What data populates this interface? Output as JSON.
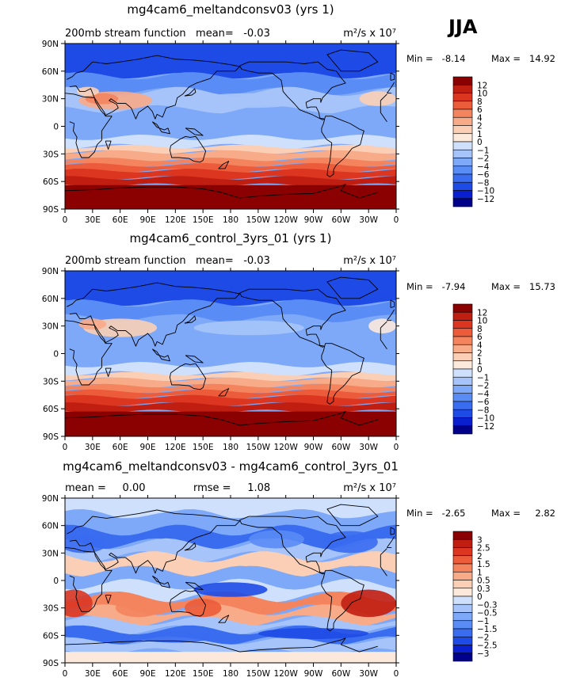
{
  "season": "JJA",
  "units_label": "m²/s x 10⁷",
  "x_tick_labels": [
    "0",
    "30E",
    "60E",
    "90E",
    "120E",
    "150E",
    "180",
    "150W",
    "120W",
    "90W",
    "60W",
    "30W",
    "0"
  ],
  "y_tick_labels": [
    "90N",
    "60N",
    "30N",
    "0",
    "30S",
    "60S",
    "90S"
  ],
  "palette": {
    "main": [
      "#00008b",
      "#0a1fd0",
      "#1e4be6",
      "#3a6cf0",
      "#5a8cf5",
      "#7ea8f8",
      "#a6c4fa",
      "#cfe0fc",
      "#fde9dc",
      "#fbcfb5",
      "#f8ab88",
      "#f3845e",
      "#ec5c3a",
      "#dc3621",
      "#c11e12",
      "#8b0000"
    ],
    "diff": [
      "#00008b",
      "#0a1fd0",
      "#1e4be6",
      "#3a6cf0",
      "#5a8cf5",
      "#7ea8f8",
      "#a6c4fa",
      "#cfe0fc",
      "#fde9dc",
      "#fbcfb5",
      "#f8ab88",
      "#f3845e",
      "#ec5c3a",
      "#dc3621",
      "#c11e12",
      "#8b0000"
    ]
  },
  "panels": [
    {
      "title": "mg4cam6_meltandconsv03 (yrs 1)",
      "left_label": "200mb stream function   mean=   -0.03",
      "rmse_label": "",
      "min_label": "Min =   -8.14",
      "max_label": "Max =   14.92",
      "colorbar_labels": [
        "12",
        "10",
        "8",
        "6",
        "4",
        "2",
        "1",
        "0",
        "−1",
        "−2",
        "−4",
        "−6",
        "−8",
        "−10",
        "−12"
      ]
    },
    {
      "title": "mg4cam6_control_3yrs_01 (yrs 1)",
      "left_label": "200mb stream function   mean=   -0.03",
      "rmse_label": "",
      "min_label": "Min =   -7.94",
      "max_label": "Max =   15.73",
      "colorbar_labels": [
        "12",
        "10",
        "8",
        "6",
        "4",
        "2",
        "1",
        "0",
        "−1",
        "−2",
        "−4",
        "−6",
        "−8",
        "−10",
        "−12"
      ]
    },
    {
      "title": "mg4cam6_meltandconsv03 - mg4cam6_control_3yrs_01",
      "left_label": "mean =     0.00",
      "rmse_label": "rmse =     1.08",
      "min_label": "Min =   -2.65",
      "max_label": "Max =     2.82",
      "colorbar_labels": [
        "3",
        "2.5",
        "2",
        "1.5",
        "1",
        "0.5",
        "0.3",
        "0",
        "−0.3",
        "−0.5",
        "−1",
        "−1.5",
        "−2",
        "−2.5",
        "−3"
      ]
    }
  ],
  "chart_data": [
    {
      "type": "heatmap",
      "title": "mg4cam6_meltandconsv03 (yrs 1)",
      "variable": "200mb stream function",
      "season": "JJA",
      "units": "m^2/s x 10^7",
      "mean": -0.03,
      "min": -8.14,
      "max": 14.92,
      "x": {
        "range": [
          0,
          360
        ],
        "ticks": [
          "0",
          "30E",
          "60E",
          "90E",
          "120E",
          "150E",
          "180",
          "150W",
          "120W",
          "90W",
          "60W",
          "30W",
          "0"
        ]
      },
      "y": {
        "range": [
          -90,
          90
        ],
        "ticks": [
          "90N",
          "60N",
          "30N",
          "0",
          "30S",
          "60S",
          "90S"
        ]
      },
      "contour_levels": [
        -12,
        -10,
        -8,
        -6,
        -4,
        -2,
        -1,
        0,
        1,
        2,
        4,
        6,
        8,
        10,
        12
      ]
    },
    {
      "type": "heatmap",
      "title": "mg4cam6_control_3yrs_01 (yrs 1)",
      "variable": "200mb stream function",
      "season": "JJA",
      "units": "m^2/s x 10^7",
      "mean": -0.03,
      "min": -7.94,
      "max": 15.73,
      "x": {
        "range": [
          0,
          360
        ],
        "ticks": [
          "0",
          "30E",
          "60E",
          "90E",
          "120E",
          "150E",
          "180",
          "150W",
          "120W",
          "90W",
          "60W",
          "30W",
          "0"
        ]
      },
      "y": {
        "range": [
          -90,
          90
        ],
        "ticks": [
          "90N",
          "60N",
          "30N",
          "0",
          "30S",
          "60S",
          "90S"
        ]
      },
      "contour_levels": [
        -12,
        -10,
        -8,
        -6,
        -4,
        -2,
        -1,
        0,
        1,
        2,
        4,
        6,
        8,
        10,
        12
      ]
    },
    {
      "type": "heatmap",
      "title": "mg4cam6_meltandconsv03 - mg4cam6_control_3yrs_01",
      "variable": "200mb stream function difference",
      "season": "JJA",
      "units": "m^2/s x 10^7",
      "mean": 0.0,
      "rmse": 1.08,
      "min": -2.65,
      "max": 2.82,
      "x": {
        "range": [
          0,
          360
        ],
        "ticks": [
          "0",
          "30E",
          "60E",
          "90E",
          "120E",
          "150E",
          "180",
          "150W",
          "120W",
          "90W",
          "60W",
          "30W",
          "0"
        ]
      },
      "y": {
        "range": [
          -90,
          90
        ],
        "ticks": [
          "90N",
          "60N",
          "30N",
          "0",
          "30S",
          "60S",
          "90S"
        ]
      },
      "contour_levels": [
        -3,
        -2.5,
        -2,
        -1.5,
        -1,
        -0.5,
        -0.3,
        0,
        0.3,
        0.5,
        1,
        1.5,
        2,
        2.5,
        3
      ]
    }
  ]
}
